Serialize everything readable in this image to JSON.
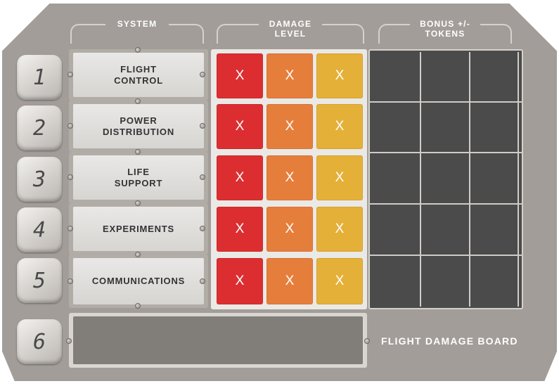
{
  "headers": {
    "system": "SYSTEM",
    "damage_line1": "DAMAGE",
    "damage_line2": "LEVEL",
    "bonus_line1": "BONUS +/-",
    "bonus_line2": "TOKENS"
  },
  "rows": [
    {
      "number": "1",
      "system_line1": "FLIGHT",
      "system_line2": "CONTROL"
    },
    {
      "number": "2",
      "system_line1": "POWER",
      "system_line2": "DISTRIBUTION"
    },
    {
      "number": "3",
      "system_line1": "LIFE",
      "system_line2": "SUPPORT"
    },
    {
      "number": "4",
      "system_line1": "EXPERIMENTS",
      "system_line2": ""
    },
    {
      "number": "5",
      "system_line1": "COMMUNICATIONS",
      "system_line2": ""
    }
  ],
  "damage_mark": "X",
  "extra_row_number": "6",
  "board_title": "FLIGHT DAMAGE BOARD",
  "colors": {
    "board": "#a29d98",
    "damage_low": "#dc2e31",
    "damage_mid": "#e67e3b",
    "damage_high": "#e5b038",
    "bonus_panel": "#4c4b4b"
  }
}
